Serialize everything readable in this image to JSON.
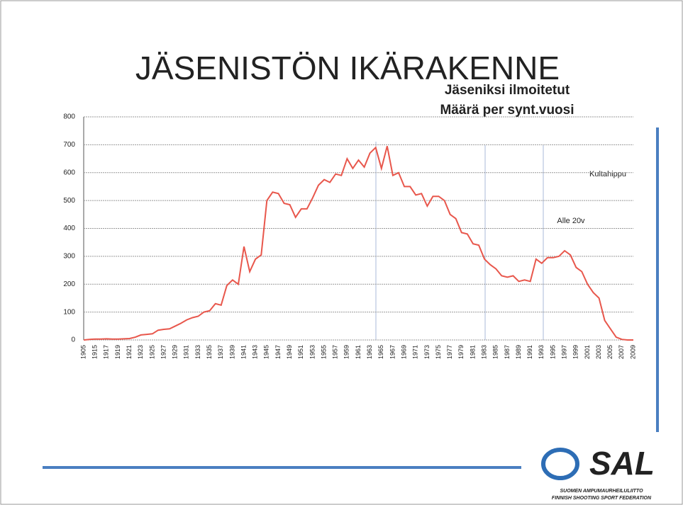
{
  "chart_data": {
    "type": "line",
    "title": "JÄSENISTÖN IKÄRAKENNE",
    "subtitle": [
      "Jäseniksi ilmoitetut",
      "Määrä per synt.vuosi"
    ],
    "annotations": [
      "Kultahippu",
      "Alle 20v"
    ],
    "categories": [
      "1905",
      null,
      "1915",
      null,
      "1917",
      null,
      "1919",
      null,
      "1921",
      null,
      "1923",
      null,
      "1925",
      null,
      "1927",
      null,
      "1929",
      null,
      "1931",
      null,
      "1933",
      null,
      "1935",
      null,
      "1937",
      null,
      "1939",
      null,
      "1941",
      null,
      "1943",
      null,
      "1945",
      null,
      "1947",
      null,
      "1949",
      null,
      "1951",
      null,
      "1953",
      null,
      "1955",
      null,
      "1957",
      null,
      "1959",
      null,
      "1961",
      null,
      "1963",
      null,
      "1965",
      null,
      "1967",
      null,
      "1969",
      null,
      "1971",
      null,
      "1973",
      null,
      "1975",
      null,
      "1977",
      null,
      "1979",
      null,
      "1981",
      null,
      "1983",
      null,
      "1985",
      null,
      "1987",
      null,
      "1989",
      null,
      "1991",
      null,
      "1993",
      null,
      "1995",
      null,
      "1997",
      null,
      "1999",
      null,
      "2001",
      null,
      "2003",
      null,
      "2005",
      null,
      "2007",
      null,
      "2009"
    ],
    "values": [
      0,
      2,
      3,
      3,
      4,
      3,
      3,
      4,
      5,
      10,
      18,
      20,
      22,
      35,
      38,
      40,
      50,
      60,
      72,
      80,
      85,
      100,
      105,
      130,
      125,
      195,
      215,
      200,
      335,
      245,
      290,
      305,
      500,
      530,
      525,
      490,
      485,
      440,
      470,
      470,
      510,
      555,
      575,
      565,
      595,
      590,
      650,
      615,
      645,
      620,
      670,
      690,
      615,
      695,
      590,
      600,
      550,
      550,
      520,
      525,
      480,
      515,
      515,
      500,
      450,
      435,
      385,
      380,
      345,
      340,
      290,
      270,
      255,
      230,
      225,
      230,
      210,
      215,
      210,
      290,
      275,
      295,
      295,
      300,
      320,
      305,
      260,
      245,
      200,
      170,
      150,
      70,
      40,
      10,
      2,
      0,
      0
    ],
    "color": "#e8574c",
    "ylim": [
      0,
      800
    ],
    "yticks": [
      0,
      100,
      200,
      300,
      400,
      500,
      600,
      700,
      800
    ],
    "grid": true
  },
  "logo": {
    "name": "SAL",
    "line1": "SUOMEN AMPUMAURHEILULIITTO",
    "line2": "FINNISH SHOOTING SPORT FEDERATION"
  }
}
